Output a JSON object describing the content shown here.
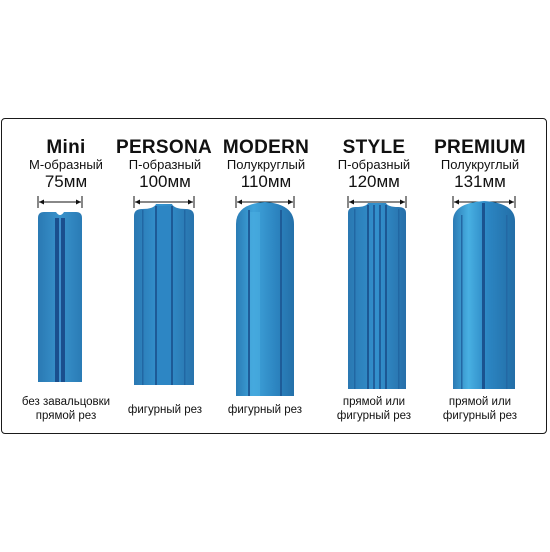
{
  "products": [
    {
      "name": "Mini",
      "profile": "М-образный",
      "width": "75мм",
      "cut": [
        "без завальцовки",
        "прямой рез"
      ]
    },
    {
      "name": "PERSONA",
      "profile": "П-образный",
      "width": "100мм",
      "cut": [
        "фигурный рез"
      ]
    },
    {
      "name": "MODERN",
      "profile": "Полукруглый",
      "width": "110мм",
      "cut": [
        "фигурный рез"
      ]
    },
    {
      "name": "STYLE",
      "profile": "П-образный",
      "width": "120мм",
      "cut": [
        "прямой или",
        "фигурный рез"
      ]
    },
    {
      "name": "PREMIUM",
      "profile": "Полукруглый",
      "width": "131мм",
      "cut": [
        "прямой или",
        "фигурный рез"
      ]
    }
  ],
  "colors": {
    "panel": "#2f86c0",
    "panel_dark": "#1f5f9a",
    "panel_light": "#47a8dc",
    "frame": "#1a1a1a"
  }
}
